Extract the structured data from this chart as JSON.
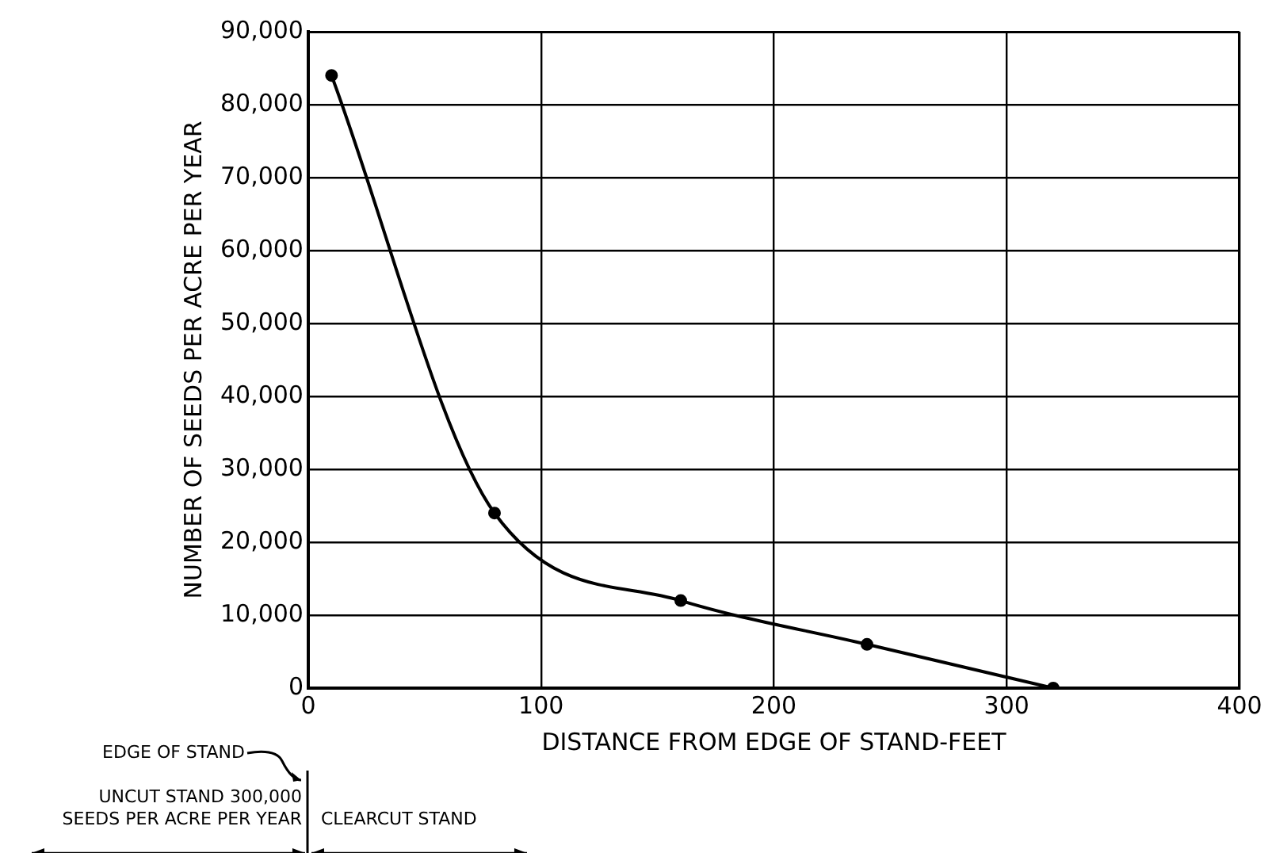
{
  "chart_data": {
    "type": "line",
    "xlabel": "DISTANCE FROM EDGE OF STAND-FEET",
    "ylabel": "NUMBER OF SEEDS PER ACRE PER YEAR",
    "x": [
      10,
      80,
      160,
      240,
      320
    ],
    "series": [
      {
        "color": "#000000",
        "values": [
          84000,
          24000,
          12000,
          6000,
          0
        ]
      }
    ],
    "xlim": [
      0,
      400
    ],
    "xticks": [
      0,
      100,
      200,
      300,
      400
    ],
    "ylim": [
      0,
      90000
    ],
    "yticks": [
      {
        "value": 0,
        "label": "0"
      },
      {
        "value": 10000,
        "label": "10,000"
      },
      {
        "value": 20000,
        "label": "20,000"
      },
      {
        "value": 30000,
        "label": "30,000"
      },
      {
        "value": 40000,
        "label": "40,000"
      },
      {
        "value": 50000,
        "label": "50,000"
      },
      {
        "value": 60000,
        "label": "60,000"
      },
      {
        "value": 70000,
        "label": "70,000"
      },
      {
        "value": 80000,
        "label": "80,000"
      },
      {
        "value": 90000,
        "label": "90,000"
      }
    ],
    "grid": true,
    "legend": false,
    "marker": "circle",
    "line_style": "solid",
    "annotations": [
      "EDGE OF STAND",
      "UNCUT STAND 300,000\nSEEDS PER ACRE PER YEAR",
      "CLEARCUT STAND"
    ]
  }
}
